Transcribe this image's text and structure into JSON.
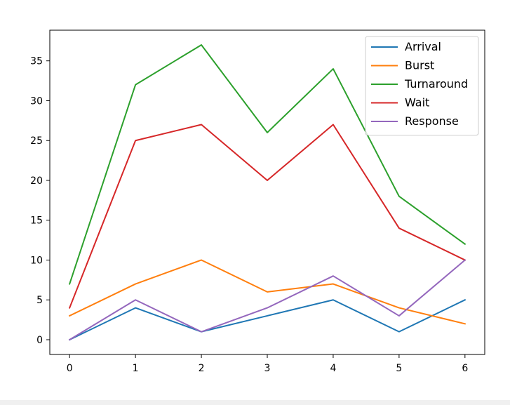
{
  "chart_data": {
    "type": "line",
    "title": "",
    "xlabel": "",
    "ylabel": "",
    "x": [
      0,
      1,
      2,
      3,
      4,
      5,
      6
    ],
    "xlim": [
      -0.3,
      6.3
    ],
    "ylim": [
      -1.85,
      38.85
    ],
    "xticks": [
      0,
      1,
      2,
      3,
      4,
      5,
      6
    ],
    "yticks": [
      0,
      5,
      10,
      15,
      20,
      25,
      30,
      35
    ],
    "grid": false,
    "legend_position": "top-right",
    "series": [
      {
        "name": "Arrival",
        "color": "#1f77b4",
        "values": [
          0,
          4,
          1,
          3,
          5,
          1,
          5
        ]
      },
      {
        "name": "Burst",
        "color": "#ff7f0e",
        "values": [
          3,
          7,
          10,
          6,
          7,
          4,
          2
        ]
      },
      {
        "name": "Turnaround",
        "color": "#2ca02c",
        "values": [
          7,
          32,
          37,
          26,
          34,
          18,
          12
        ]
      },
      {
        "name": "Wait",
        "color": "#d62728",
        "values": [
          4,
          25,
          27,
          20,
          27,
          14,
          10
        ]
      },
      {
        "name": "Response",
        "color": "#9467bd",
        "values": [
          0,
          5,
          1,
          4,
          8,
          3,
          10
        ]
      }
    ]
  }
}
